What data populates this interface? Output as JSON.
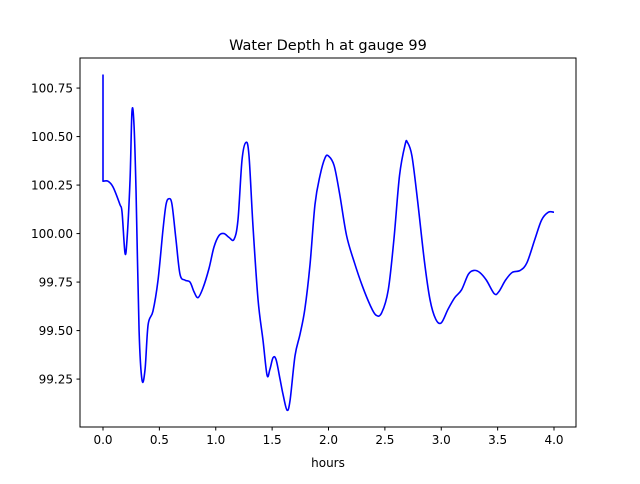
{
  "chart_data": {
    "type": "line",
    "title": "Water Depth h at gauge 99",
    "xlabel": "hours",
    "ylabel": "",
    "xlim": [
      -0.204,
      4.195
    ],
    "ylim": [
      99.003,
      100.905
    ],
    "xticks": [
      0.0,
      0.5,
      1.0,
      1.5,
      2.0,
      2.5,
      3.0,
      3.5,
      4.0
    ],
    "xtick_labels": [
      "0.0",
      "0.5",
      "1.0",
      "1.5",
      "2.0",
      "2.5",
      "3.0",
      "3.5",
      "4.0"
    ],
    "yticks": [
      99.25,
      99.5,
      99.75,
      100.0,
      100.25,
      100.5,
      100.75
    ],
    "ytick_labels": [
      "99.25",
      "99.50",
      "99.75",
      "100.00",
      "100.25",
      "100.50",
      "100.75"
    ],
    "grid": false,
    "color": "#0000ff",
    "series": [
      {
        "name": "h",
        "x": [
          0,
          0,
          0.044,
          0.089,
          0.15,
          0.169,
          0.195,
          0.213,
          0.24,
          0.257,
          0.275,
          0.293,
          0.32,
          0.346,
          0.373,
          0.4,
          0.443,
          0.488,
          0.532,
          0.559,
          0.585,
          0.612,
          0.647,
          0.683,
          0.727,
          0.772,
          0.807,
          0.843,
          0.887,
          0.94,
          0.984,
          1.029,
          1.073,
          1.118,
          1.162,
          1.197,
          1.233,
          1.268,
          1.295,
          1.33,
          1.375,
          1.419,
          1.455,
          1.48,
          1.508,
          1.535,
          1.57,
          1.597,
          1.632,
          1.659,
          1.703,
          1.747,
          1.79,
          1.836,
          1.88,
          1.925,
          1.969,
          2.0,
          2.05,
          2.1,
          2.16,
          2.23,
          2.3,
          2.37,
          2.42,
          2.47,
          2.53,
          2.58,
          2.63,
          2.68,
          2.7,
          2.74,
          2.79,
          2.85,
          2.9,
          2.95,
          3.0,
          3.06,
          3.12,
          3.18,
          3.24,
          3.29,
          3.34,
          3.4,
          3.47,
          3.51,
          3.57,
          3.63,
          3.7,
          3.76,
          3.83,
          3.89,
          3.95,
          4.0
        ],
        "y": [
          100.82,
          100.27,
          100.27,
          100.24,
          100.15,
          100.11,
          99.9,
          99.97,
          100.28,
          100.63,
          100.56,
          100.22,
          99.5,
          99.245,
          99.3,
          99.53,
          99.6,
          99.76,
          100.02,
          100.15,
          100.18,
          100.15,
          99.97,
          99.79,
          99.76,
          99.75,
          99.7,
          99.67,
          99.72,
          99.82,
          99.93,
          99.99,
          100.0,
          99.98,
          99.97,
          100.07,
          100.38,
          100.47,
          100.4,
          100.04,
          99.66,
          99.45,
          99.27,
          99.3,
          99.36,
          99.35,
          99.25,
          99.17,
          99.09,
          99.14,
          99.37,
          99.48,
          99.61,
          99.84,
          100.15,
          100.3,
          100.39,
          100.4,
          100.35,
          100.2,
          99.99,
          99.85,
          99.73,
          99.63,
          99.58,
          99.59,
          99.71,
          99.97,
          100.3,
          100.46,
          100.47,
          100.4,
          100.17,
          99.86,
          99.66,
          99.56,
          99.54,
          99.61,
          99.67,
          99.71,
          99.79,
          99.81,
          99.8,
          99.76,
          99.69,
          99.7,
          99.76,
          99.8,
          99.81,
          99.85,
          99.97,
          100.07,
          100.11,
          100.11
        ]
      }
    ]
  }
}
